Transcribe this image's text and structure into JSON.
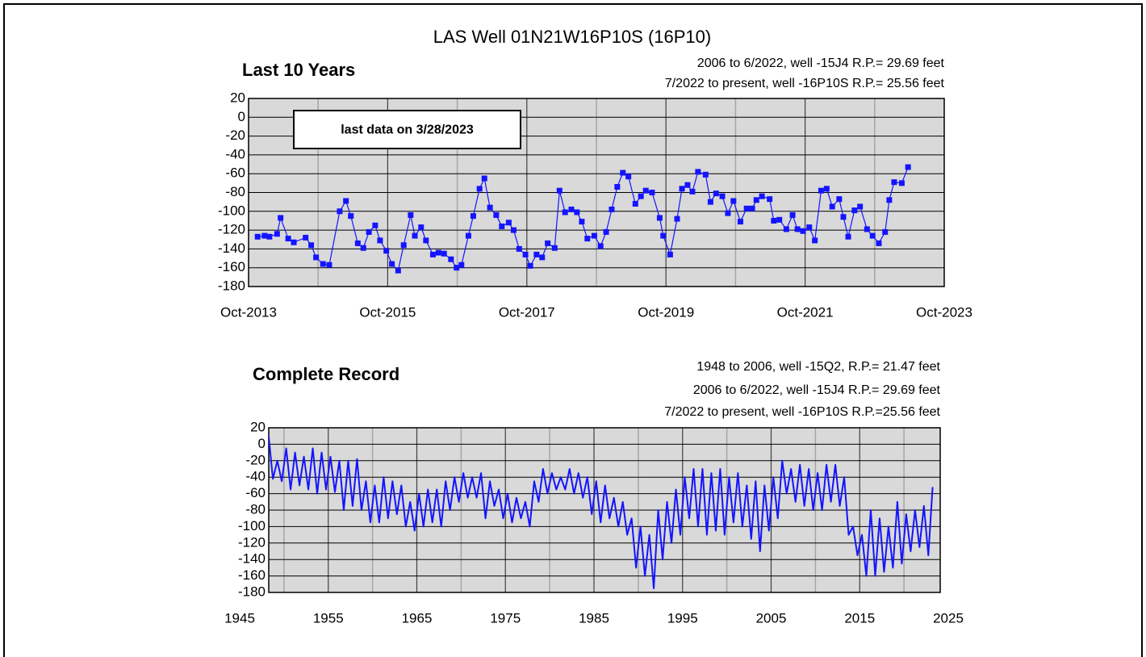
{
  "title": "LAS Well 01N21W16P10S (16P10)",
  "chart_data": [
    {
      "type": "line",
      "title": "Last 10 Years",
      "notes": [
        "2006 to 6/2022, well -15J4 R.P.= 29.69 feet",
        "7/2022 to present, well -16P10S R.P.= 25.56 feet"
      ],
      "annotation": "last data on 3/28/2023",
      "color": "#1414ff",
      "markers": true,
      "grid": true,
      "xlim": [
        2013.75,
        2023.75
      ],
      "xticks": [
        {
          "value": 2013.75,
          "label": "Oct-2013"
        },
        {
          "value": 2015.75,
          "label": "Oct-2015"
        },
        {
          "value": 2017.75,
          "label": "Oct-2017"
        },
        {
          "value": 2019.75,
          "label": "Oct-2019"
        },
        {
          "value": 2021.75,
          "label": "Oct-2021"
        },
        {
          "value": 2023.75,
          "label": "Oct-2023"
        }
      ],
      "xminorticks": [
        2014.75,
        2016.75,
        2018.75,
        2020.75,
        2022.75
      ],
      "ylim": [
        -180,
        20
      ],
      "yticks": [
        20,
        0,
        -20,
        -40,
        -60,
        -80,
        -100,
        -120,
        -140,
        -160,
        -180
      ],
      "x": [
        2013.88,
        2013.98,
        2014.05,
        2014.16,
        2014.21,
        2014.32,
        2014.4,
        2014.57,
        2014.65,
        2014.72,
        2014.82,
        2014.91,
        2015.06,
        2015.15,
        2015.22,
        2015.32,
        2015.4,
        2015.48,
        2015.57,
        2015.64,
        2015.73,
        2015.81,
        2015.9,
        2015.98,
        2016.08,
        2016.14,
        2016.23,
        2016.3,
        2016.4,
        2016.48,
        2016.56,
        2016.66,
        2016.74,
        2016.81,
        2016.91,
        2016.98,
        2017.07,
        2017.14,
        2017.22,
        2017.31,
        2017.39,
        2017.49,
        2017.56,
        2017.64,
        2017.73,
        2017.8,
        2017.89,
        2017.97,
        2018.05,
        2018.15,
        2018.22,
        2018.3,
        2018.39,
        2018.47,
        2018.54,
        2018.62,
        2018.72,
        2018.81,
        2018.89,
        2018.97,
        2019.05,
        2019.13,
        2019.21,
        2019.31,
        2019.39,
        2019.46,
        2019.55,
        2019.66,
        2019.71,
        2019.81,
        2019.91,
        2019.98,
        2020.06,
        2020.13,
        2020.21,
        2020.32,
        2020.39,
        2020.47,
        2020.56,
        2020.64,
        2020.72,
        2020.82,
        2020.91,
        2020.99,
        2021.05,
        2021.13,
        2021.24,
        2021.3,
        2021.38,
        2021.48,
        2021.57,
        2021.64,
        2021.72,
        2021.81,
        2021.89,
        2021.98,
        2022.06,
        2022.14,
        2022.24,
        2022.3,
        2022.37,
        2022.46,
        2022.54,
        2022.64,
        2022.72,
        2022.81,
        2022.9,
        2022.96,
        2023.03,
        2023.14,
        2023.23
      ],
      "values": [
        -127,
        -126,
        -127,
        -124,
        -107,
        -129,
        -133,
        -128,
        -136,
        -149,
        -156,
        -157,
        -100,
        -89,
        -105,
        -134,
        -139,
        -122,
        -115,
        -131,
        -142,
        -156,
        -163,
        -136,
        -104,
        -126,
        -117,
        -131,
        -146,
        -144,
        -145,
        -151,
        -160,
        -157,
        -126,
        -105,
        -76,
        -65,
        -96,
        -104,
        -116,
        -112,
        -120,
        -140,
        -146,
        -158,
        -146,
        -149,
        -134,
        -139,
        -78,
        -101,
        -98,
        -101,
        -111,
        -129,
        -126,
        -137,
        -122,
        -98,
        -74,
        -59,
        -63,
        -92,
        -84,
        -78,
        -80,
        -107,
        -126,
        -146,
        -108,
        -76,
        -72,
        -79,
        -58,
        -61,
        -90,
        -81,
        -84,
        -102,
        -89,
        -111,
        -97,
        -97,
        -88,
        -84,
        -87,
        -110,
        -109,
        -119,
        -104,
        -119,
        -121,
        -117,
        -131,
        -78,
        -76,
        -95,
        -87,
        -106,
        -127,
        -99,
        -95,
        -119,
        -126,
        -134,
        -122,
        -88,
        -69,
        -70,
        -53
      ]
    },
    {
      "type": "line",
      "title": "Complete Record",
      "notes": [
        "1948 to 2006, well -15Q2, R.P.= 21.47 feet",
        "2006 to 6/2022, well -15J4 R.P.= 29.69 feet",
        "7/2022 to present, well -16P10S R.P.=25.56 feet"
      ],
      "color": "#1414ff",
      "markers": false,
      "grid": true,
      "xlim": [
        1945,
        2025
      ],
      "xticks": [
        1945,
        1955,
        1965,
        1975,
        1985,
        1995,
        2005,
        2015,
        2025
      ],
      "xminorticks": [
        1950,
        1960,
        1970,
        1980,
        1990,
        2000,
        2010,
        2020
      ],
      "ylim": [
        -180,
        20
      ],
      "yticks": [
        20,
        0,
        -20,
        -40,
        -60,
        -80,
        -100,
        -120,
        -140,
        -160,
        -180
      ],
      "x": [
        1948.25,
        1948.75,
        1949.25,
        1949.75,
        1950.25,
        1950.75,
        1951.25,
        1951.75,
        1952.25,
        1952.75,
        1953.25,
        1953.75,
        1954.25,
        1954.75,
        1955.25,
        1955.75,
        1956.25,
        1956.75,
        1957.25,
        1957.75,
        1958.25,
        1958.75,
        1959.25,
        1959.75,
        1960.25,
        1960.75,
        1961.25,
        1961.75,
        1962.25,
        1962.75,
        1963.25,
        1963.75,
        1964.25,
        1964.75,
        1965.25,
        1965.75,
        1966.25,
        1966.75,
        1967.25,
        1967.75,
        1968.25,
        1968.75,
        1969.25,
        1969.75,
        1970.25,
        1970.75,
        1971.25,
        1971.75,
        1972.25,
        1972.75,
        1973.25,
        1973.75,
        1974.25,
        1974.75,
        1975.25,
        1975.75,
        1976.25,
        1976.75,
        1977.25,
        1977.75,
        1978.25,
        1978.75,
        1979.25,
        1979.75,
        1980.25,
        1980.75,
        1981.25,
        1981.75,
        1982.25,
        1982.75,
        1983.25,
        1983.75,
        1984.25,
        1984.75,
        1985.25,
        1985.75,
        1986.25,
        1986.75,
        1987.25,
        1987.75,
        1988.25,
        1988.75,
        1989.25,
        1989.75,
        1990.25,
        1990.75,
        1991.25,
        1991.75,
        1992.25,
        1992.75,
        1993.25,
        1993.75,
        1994.25,
        1994.75,
        1995.25,
        1995.75,
        1996.25,
        1996.75,
        1997.25,
        1997.75,
        1998.25,
        1998.75,
        1999.25,
        1999.75,
        2000.25,
        2000.75,
        2001.25,
        2001.75,
        2002.25,
        2002.75,
        2003.25,
        2003.75,
        2004.25,
        2004.75,
        2005.25,
        2005.75,
        2006.25,
        2006.75,
        2007.25,
        2007.75,
        2008.25,
        2008.75,
        2009.25,
        2009.75,
        2010.25,
        2010.75,
        2011.25,
        2011.75,
        2012.25,
        2012.75,
        2013.25,
        2013.75,
        2014.25,
        2014.75,
        2015.25,
        2015.75,
        2016.25,
        2016.75,
        2017.25,
        2017.75,
        2018.25,
        2018.75,
        2019.25,
        2019.75,
        2020.25,
        2020.75,
        2021.25,
        2021.75,
        2022.25,
        2022.75,
        2023.23
      ],
      "values": [
        12,
        -42,
        -20,
        -45,
        -5,
        -55,
        -10,
        -50,
        -15,
        -55,
        -5,
        -60,
        -10,
        -55,
        -15,
        -58,
        -20,
        -80,
        -20,
        -75,
        -18,
        -80,
        -45,
        -95,
        -50,
        -95,
        -40,
        -90,
        -45,
        -85,
        -50,
        -100,
        -70,
        -105,
        -60,
        -100,
        -55,
        -95,
        -55,
        -100,
        -45,
        -80,
        -40,
        -70,
        -35,
        -65,
        -40,
        -65,
        -35,
        -90,
        -45,
        -75,
        -55,
        -90,
        -60,
        -95,
        -65,
        -90,
        -70,
        -100,
        -45,
        -70,
        -30,
        -60,
        -35,
        -55,
        -40,
        -55,
        -30,
        -60,
        -35,
        -65,
        -40,
        -85,
        -45,
        -95,
        -50,
        -90,
        -65,
        -100,
        -70,
        -110,
        -90,
        -150,
        -100,
        -160,
        -110,
        -175,
        -80,
        -140,
        -70,
        -120,
        -55,
        -110,
        -40,
        -90,
        -30,
        -100,
        -30,
        -110,
        -35,
        -105,
        -30,
        -110,
        -40,
        -95,
        -35,
        -100,
        -50,
        -115,
        -45,
        -130,
        -50,
        -105,
        -40,
        -90,
        -20,
        -60,
        -30,
        -70,
        -25,
        -75,
        -30,
        -80,
        -35,
        -80,
        -25,
        -70,
        -25,
        -75,
        -40,
        -110,
        -100,
        -135,
        -110,
        -160,
        -80,
        -160,
        -90,
        -155,
        -100,
        -150,
        -70,
        -145,
        -85,
        -130,
        -80,
        -125,
        -75,
        -135,
        -52
      ]
    }
  ]
}
